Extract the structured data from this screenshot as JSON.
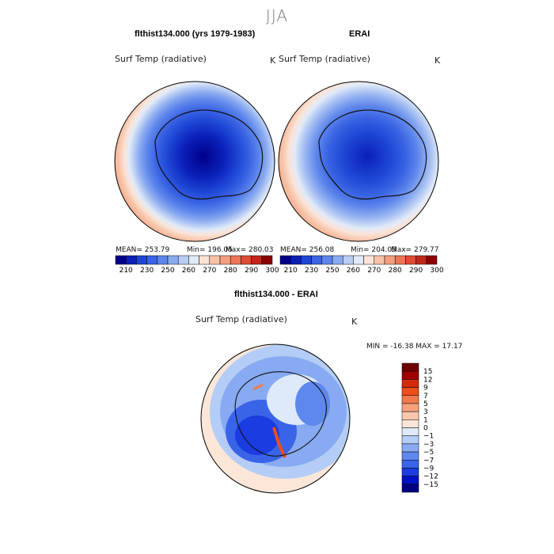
{
  "season": "JJA",
  "panels": {
    "model": {
      "title": "flthist134.000 (yrs 1979-1983)",
      "variable": "Surf Temp (radiative)",
      "units": "K",
      "mean": "MEAN= 253.79",
      "min": "Min= 196.05",
      "max": "Max= 280.03"
    },
    "obs": {
      "title": "ERAI",
      "variable": "Surf Temp (radiative)",
      "units": "K",
      "mean": "MEAN= 256.08",
      "min": "Min= 204.05",
      "max": "Max= 279.77"
    },
    "diff": {
      "title": "flthist134.000 - ERAI",
      "variable": "Surf Temp (radiative)",
      "units": "K",
      "minmax": "MIN = -16.38 MAX =  17.17"
    }
  },
  "colors": {
    "abs_scale": [
      "#00008b",
      "#0a1fb8",
      "#1e46d6",
      "#3a64e3",
      "#5d86ec",
      "#8aaaf0",
      "#b9cdf4",
      "#e1ebf8",
      "#fbe3d6",
      "#f7c3a8",
      "#f39f7f",
      "#ec7558",
      "#df4b34",
      "#c2261b",
      "#8b0000"
    ],
    "diff_scale": [
      "#000080",
      "#0010c8",
      "#1a3ce0",
      "#3a64e8",
      "#5f88ee",
      "#88aaf2",
      "#b4cdf6",
      "#deeafa",
      "#fbe6d8",
      "#f8c8ac",
      "#f5a27c",
      "#f07a4c",
      "#ec4e1c",
      "#d42a0a",
      "#a00000",
      "#6e0000"
    ],
    "coast": "#111111"
  },
  "chart_data": [
    {
      "type": "heatmap",
      "name": "flthist134.000 (yrs 1979-1983)",
      "variable": "Surf Temp (radiative)",
      "units": "K",
      "projection": "south polar stereographic",
      "colorbar_ticks": [
        210,
        230,
        250,
        260,
        270,
        280,
        290,
        300
      ],
      "stats": {
        "mean": 253.79,
        "min": 196.05,
        "max": 280.03
      }
    },
    {
      "type": "heatmap",
      "name": "ERAI",
      "variable": "Surf Temp (radiative)",
      "units": "K",
      "projection": "south polar stereographic",
      "colorbar_ticks": [
        210,
        230,
        250,
        260,
        270,
        280,
        290,
        300
      ],
      "stats": {
        "mean": 256.08,
        "min": 204.05,
        "max": 279.77
      }
    },
    {
      "type": "heatmap",
      "name": "flthist134.000 - ERAI",
      "variable": "Surf Temp (radiative)",
      "units": "K",
      "projection": "south polar stereographic",
      "colorbar_ticks": [
        15,
        12,
        9,
        7,
        5,
        3,
        1,
        0,
        -1,
        -3,
        -5,
        -7,
        -9,
        -12,
        -15
      ],
      "stats": {
        "min": -16.38,
        "max": 17.17
      }
    }
  ]
}
